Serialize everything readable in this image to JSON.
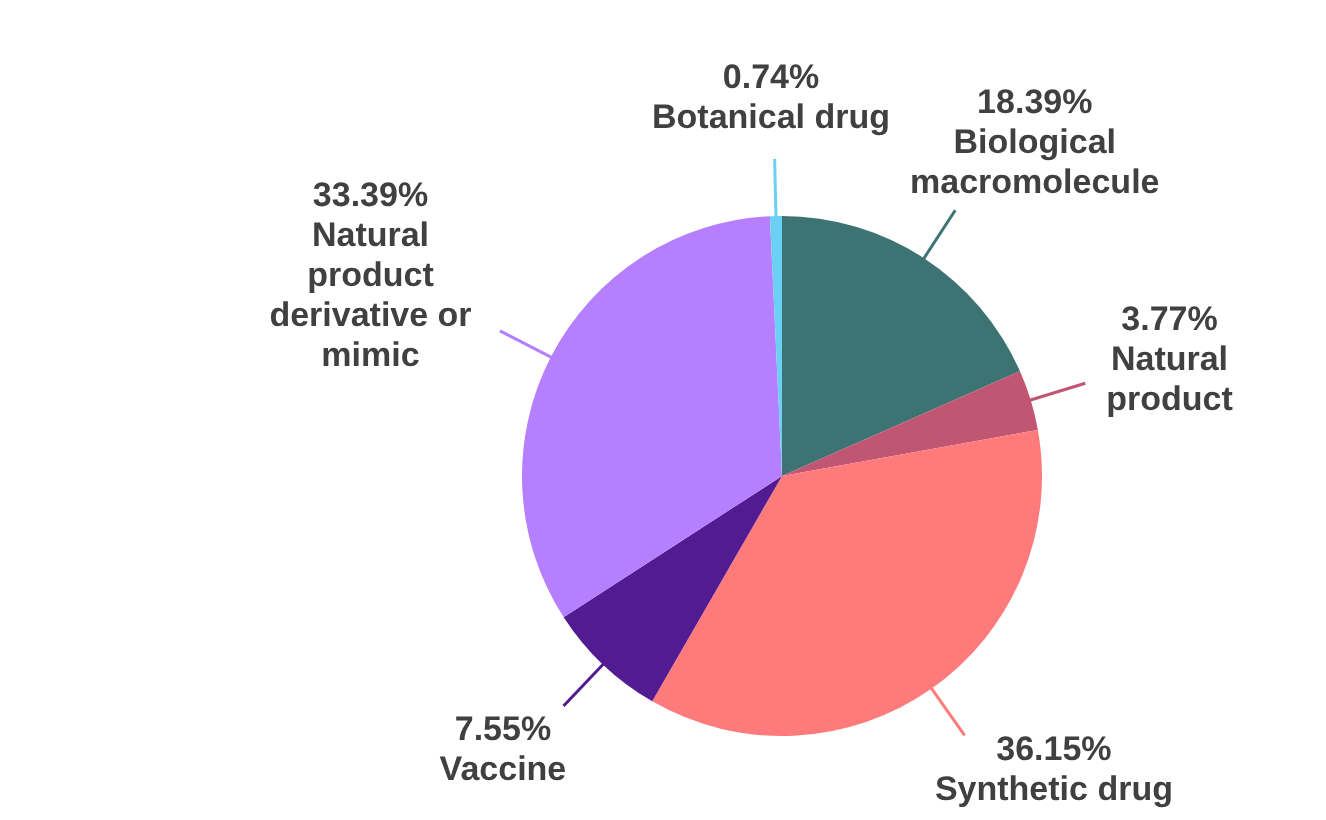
{
  "chart_data": {
    "type": "pie",
    "categories": [
      "Biological macromolecule",
      "Natural product",
      "Synthetic drug",
      "Vaccine",
      "Natural product derivative or mimic",
      "Botanical drug"
    ],
    "values": [
      18.39,
      3.77,
      36.15,
      7.55,
      33.39,
      0.74
    ],
    "colors": [
      "#3e7373",
      "#c05672",
      "#ff7b7b",
      "#521b92",
      "#b57fff",
      "#6cd0f5"
    ],
    "value_labels": [
      "18.39%",
      "3.77%",
      "36.15%",
      "7.55%",
      "33.39%",
      "0.74%"
    ]
  }
}
